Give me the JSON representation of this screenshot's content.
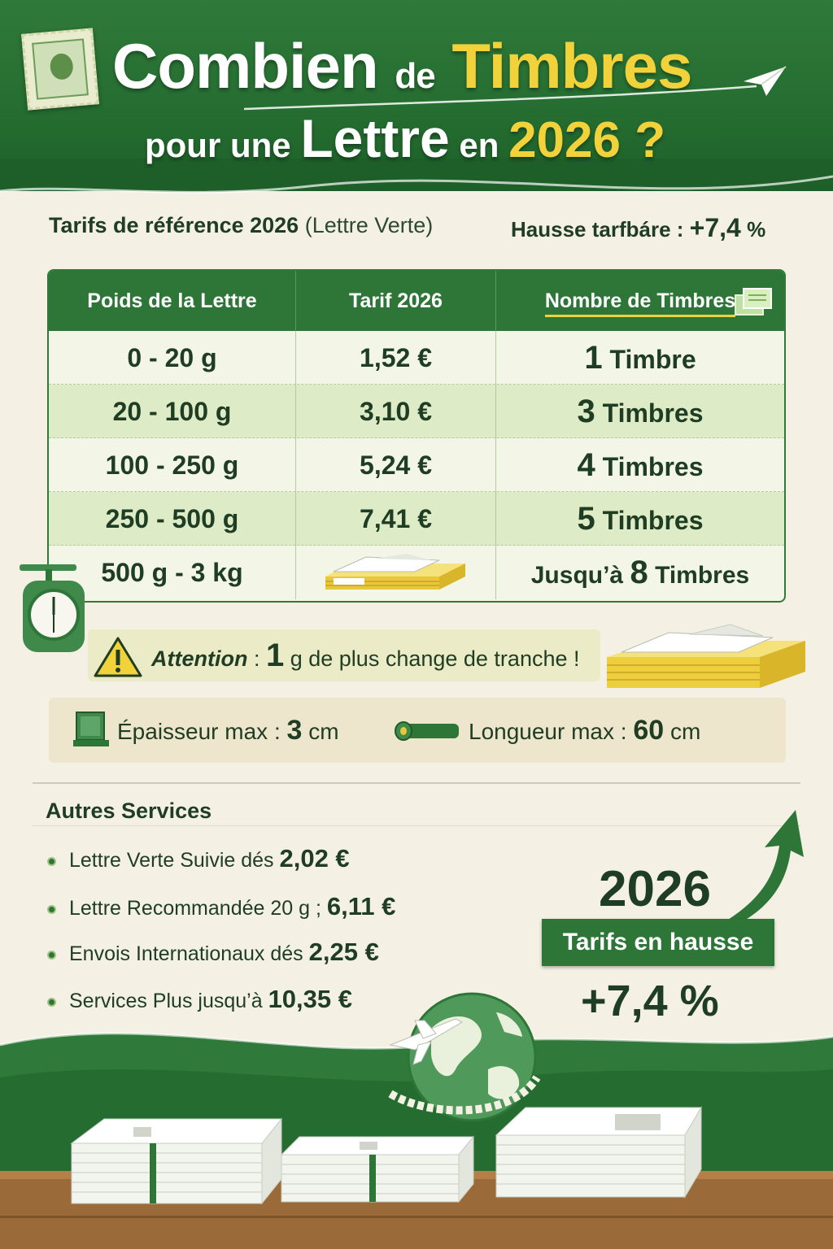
{
  "header": {
    "title_word1": "Combien",
    "title_word2": "de",
    "title_word3": "Timbres",
    "subtitle_word1": "pour une",
    "subtitle_word2": "Lettre",
    "subtitle_word3": "en",
    "subtitle_year": "2026 ?"
  },
  "reference": {
    "label": "Tarifs de référence 2026",
    "note": "(Lettre Verte)",
    "increase_label": "Hausse tarfbáre :",
    "increase_value": "+7,4",
    "increase_unit": "%"
  },
  "table": {
    "headers": [
      "Poids de la Lettre",
      "Tarif 2026",
      "Nombre de Timbres"
    ],
    "rows": [
      {
        "weight": "0 - 20 g",
        "price": "1,52 €",
        "count": "1",
        "unit": "Timbre"
      },
      {
        "weight": "20 - 100 g",
        "price": "3,10 €",
        "count": "3",
        "unit": "Timbres"
      },
      {
        "weight": "100 - 250 g",
        "price": "5,24 €",
        "count": "4",
        "unit": "Timbres"
      },
      {
        "weight": "250 - 500 g",
        "price": "7,41 €",
        "count": "5",
        "unit": "Timbres"
      },
      {
        "weight": "500 g - 3 kg",
        "price": "",
        "prefix": "Jusqu’à",
        "count": "8",
        "unit": "Timbres"
      }
    ]
  },
  "warning": {
    "label": "Attention",
    "sep": " : ",
    "number": "1",
    "text": " g de plus change de tranche !"
  },
  "dimensions": {
    "thickness_label": "Épaisseur max : ",
    "thickness_value": "3",
    "thickness_unit": " cm",
    "length_label": "Longueur max : ",
    "length_value": "60",
    "length_unit": " cm"
  },
  "services": {
    "title": "Autres Services",
    "items": [
      {
        "label": "Lettre Verte Suivie dés ",
        "price": "2,02 €"
      },
      {
        "label": "Lettre Recommandée 20 g ; ",
        "price": "6,11 €"
      },
      {
        "label": "Envois Internationaux dés ",
        "price": "2,25 €"
      },
      {
        "label": "Services Plus jusqu’à ",
        "price": "10,35 €"
      }
    ]
  },
  "badge": {
    "year": "2026",
    "label": "Tarifs en hausse",
    "value": "+7,4 %"
  },
  "colors": {
    "primary_green": "#2d7638",
    "accent_yellow": "#f2d23b",
    "background": "#f4f1e4",
    "text_dark": "#1f3d22"
  },
  "icons": [
    "stamp-icon",
    "paper-plane-icon",
    "stamps-icon",
    "package-icon",
    "scale-icon",
    "warning-icon",
    "envelopes-icon",
    "book-icon",
    "tube-icon",
    "arrow-up-icon",
    "globe-icon",
    "airplane-icon"
  ]
}
